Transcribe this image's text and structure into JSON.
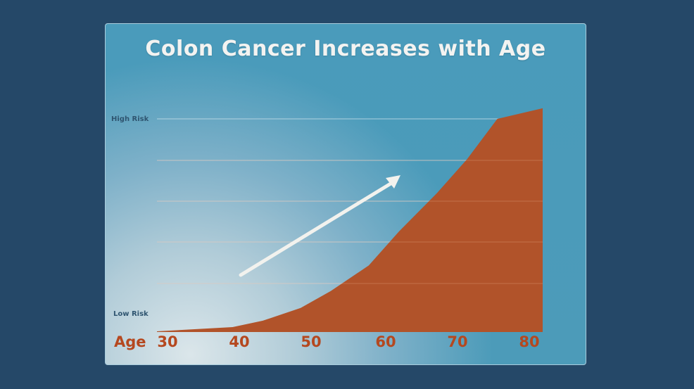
{
  "chart_data": {
    "type": "area",
    "title": "Colon Cancer Increases with Age",
    "xlabel": "Age",
    "ylabel": "",
    "y_labels": {
      "high": "High Risk",
      "low": "Low Risk"
    },
    "x_ticks": [
      "30",
      "40",
      "50",
      "60",
      "70",
      "80"
    ],
    "x": [
      30,
      40,
      44,
      49,
      53,
      58,
      62,
      67,
      71,
      75,
      81
    ],
    "values": [
      0.0,
      0.02,
      0.05,
      0.11,
      0.19,
      0.31,
      0.47,
      0.65,
      0.81,
      1.0,
      1.05
    ],
    "xlim": [
      30,
      81
    ],
    "ylim": [
      0,
      1.2
    ],
    "grid": true,
    "annotation": "upward trend arrow",
    "colors": {
      "area": "#b1532a",
      "grid": "#cfe3ec",
      "arrow": "#f2f2ee",
      "labels": "#b5481f"
    }
  }
}
